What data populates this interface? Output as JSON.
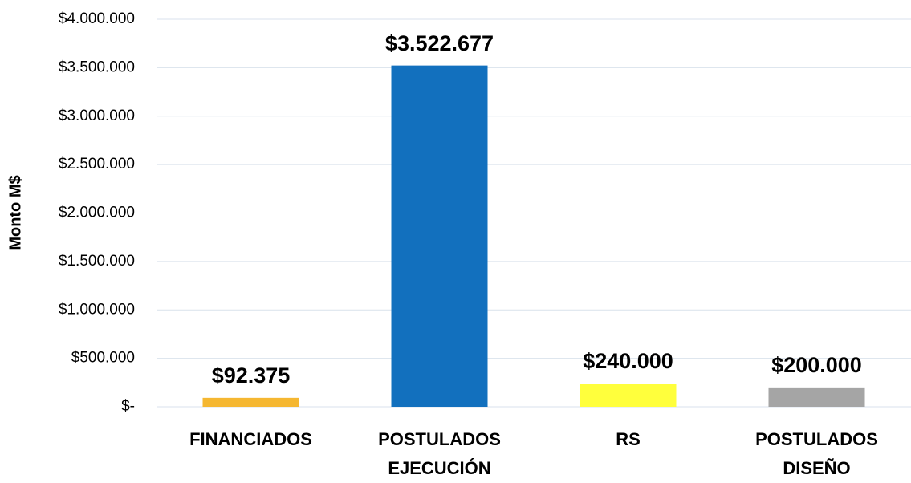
{
  "chart_data": {
    "type": "bar",
    "y_label": "Monto M$",
    "categories": [
      "FINANCIADOS",
      "POSTULADOS EJECUCIÓN",
      "RS",
      "POSTULADOS DISEÑO"
    ],
    "values": [
      92375,
      3522677,
      240000,
      200000
    ],
    "value_labels": [
      "$92.375",
      "$3.522.677",
      "$240.000",
      "$200.000"
    ],
    "colors": [
      "#f5b731",
      "#1270be",
      "#ffff3c",
      "#a5a5a5"
    ],
    "ylim": [
      0,
      4000000
    ],
    "yticks": [
      {
        "value": 0,
        "label": "$-"
      },
      {
        "value": 500000,
        "label": "$500.000"
      },
      {
        "value": 1000000,
        "label": "$1.000.000"
      },
      {
        "value": 1500000,
        "label": "$1.500.000"
      },
      {
        "value": 2000000,
        "label": "$2.000.000"
      },
      {
        "value": 2500000,
        "label": "$2.500.000"
      },
      {
        "value": 3000000,
        "label": "$3.000.000"
      },
      {
        "value": 3500000,
        "label": "$3.500.000"
      },
      {
        "value": 4000000,
        "label": "$4.000.000"
      }
    ],
    "grid": true
  }
}
